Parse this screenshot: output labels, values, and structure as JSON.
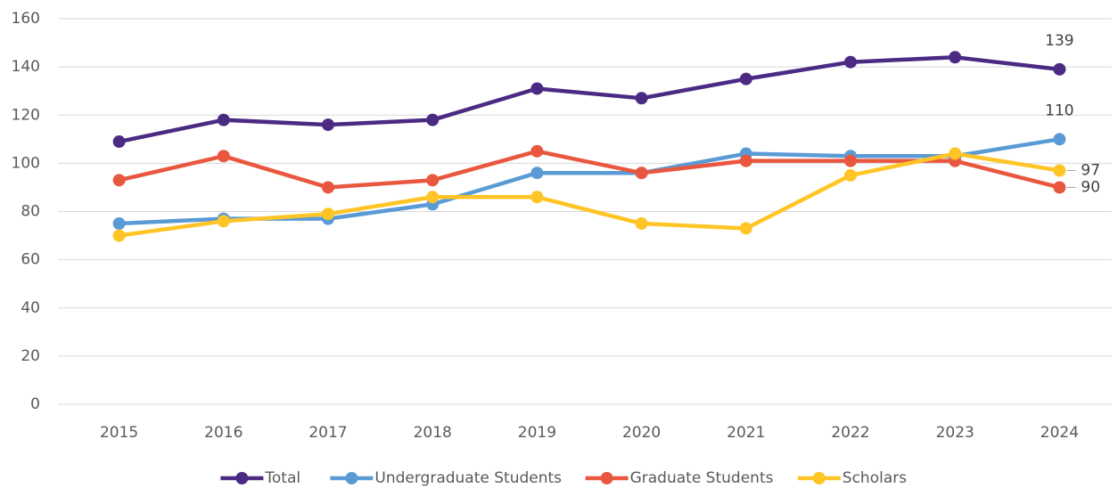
{
  "chart_data": {
    "type": "line",
    "categories": [
      "2015",
      "2016",
      "2017",
      "2018",
      "2019",
      "2020",
      "2021",
      "2022",
      "2023",
      "2024"
    ],
    "series": [
      {
        "name": "Total",
        "color": "#4b2a84",
        "values": [
          109,
          118,
          116,
          118,
          131,
          127,
          135,
          142,
          144,
          139
        ]
      },
      {
        "name": "Undergraduate Students",
        "color": "#5b9bd5",
        "values": [
          75,
          77,
          77,
          83,
          96,
          96,
          104,
          103,
          103,
          110
        ]
      },
      {
        "name": "Graduate Students",
        "color": "#e9573f",
        "values": [
          93,
          103,
          90,
          93,
          105,
          96,
          101,
          101,
          101,
          90
        ]
      },
      {
        "name": "Scholars",
        "color": "#ffc425",
        "values": [
          70,
          76,
          79,
          86,
          86,
          75,
          73,
          95,
          104,
          97
        ]
      }
    ],
    "ylim": [
      0,
      160
    ],
    "yticks": [
      0,
      20,
      40,
      60,
      80,
      100,
      120,
      140,
      160
    ],
    "grid": true,
    "legend": "bottom"
  }
}
